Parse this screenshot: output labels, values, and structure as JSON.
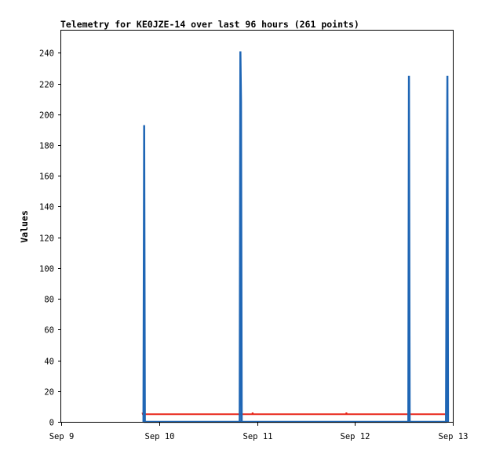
{
  "chart_data": {
    "type": "line",
    "title": "Telemetry for KE0JZE-14 over last 96 hours (261 points)",
    "ylabel": "Values",
    "xlabel": "",
    "xlim": [
      "2023-09-09 00:00",
      "2023-09-13 00:00"
    ],
    "ylim": [
      0,
      255
    ],
    "x_ticks": [
      "Sep 9",
      "Sep 10",
      "Sep 11",
      "Sep 12",
      "Sep 13"
    ],
    "y_ticks": [
      0,
      20,
      40,
      60,
      80,
      100,
      120,
      140,
      160,
      180,
      200,
      220,
      240
    ],
    "grid": false,
    "series": [
      {
        "color": "#1f66b5",
        "points": [
          {
            "x": "2023-09-09 20:10",
            "y": 0
          },
          {
            "x": "2023-09-09 20:20",
            "y": 193
          },
          {
            "x": "2023-09-09 20:30",
            "y": 0
          },
          {
            "x": "2023-09-10 19:45",
            "y": 0
          },
          {
            "x": "2023-09-10 19:55",
            "y": 241
          },
          {
            "x": "2023-09-10 20:05",
            "y": 208
          },
          {
            "x": "2023-09-10 20:15",
            "y": 0
          },
          {
            "x": "2023-09-12 13:05",
            "y": 0
          },
          {
            "x": "2023-09-12 13:15",
            "y": 225
          },
          {
            "x": "2023-09-12 13:25",
            "y": 0
          },
          {
            "x": "2023-09-12 22:20",
            "y": 0
          },
          {
            "x": "2023-09-12 22:30",
            "y": 128
          },
          {
            "x": "2023-09-12 22:40",
            "y": 225
          },
          {
            "x": "2023-09-12 22:50",
            "y": 0
          }
        ]
      },
      {
        "color": "#e8261a",
        "points": [
          {
            "x": "2023-09-09 19:55",
            "y": 6
          },
          {
            "x": "2023-09-09 20:00",
            "y": 5
          },
          {
            "x": "2023-09-10 21:00",
            "y": 5
          },
          {
            "x": "2023-09-10 22:50",
            "y": 5
          },
          {
            "x": "2023-09-10 22:55",
            "y": 6
          },
          {
            "x": "2023-09-10 23:00",
            "y": 5
          },
          {
            "x": "2023-09-11 21:50",
            "y": 5
          },
          {
            "x": "2023-09-11 21:55",
            "y": 6
          },
          {
            "x": "2023-09-11 22:00",
            "y": 5
          },
          {
            "x": "2023-09-12 22:45",
            "y": 5
          }
        ]
      },
      {
        "color": "#111111",
        "points": [
          {
            "x": "2023-09-09 20:00",
            "y": 0
          },
          {
            "x": "2023-09-12 22:45",
            "y": 0
          }
        ]
      }
    ]
  }
}
